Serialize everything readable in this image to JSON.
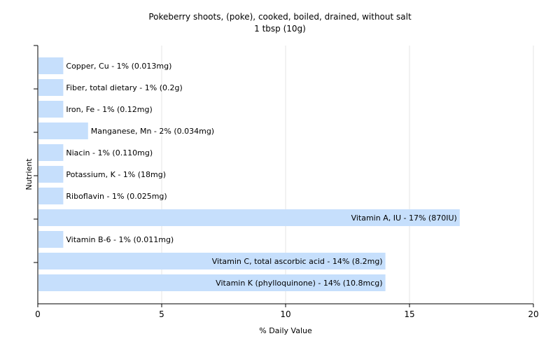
{
  "chart_data": {
    "type": "bar",
    "orientation": "horizontal",
    "title": "Pokeberry shoots, (poke), cooked, boiled, drained, without salt",
    "subtitle": "1 tbsp (10g)",
    "xlabel": "% Daily Value",
    "ylabel": "Nutrient",
    "xlim": [
      0,
      20
    ],
    "xticks": [
      0,
      5,
      10,
      15,
      20
    ],
    "grid": true,
    "bar_color": "#c6dffc",
    "categories": [
      "Copper, Cu",
      "Fiber, total dietary",
      "Iron, Fe",
      "Manganese, Mn",
      "Niacin",
      "Potassium, K",
      "Riboflavin",
      "Vitamin A, IU",
      "Vitamin B-6",
      "Vitamin C, total ascorbic acid",
      "Vitamin K (phylloquinone)"
    ],
    "values": [
      1,
      1,
      1,
      2,
      1,
      1,
      1,
      17,
      1,
      14,
      14
    ],
    "labels": [
      "Copper, Cu - 1% (0.013mg)",
      "Fiber, total dietary - 1% (0.2g)",
      "Iron, Fe - 1% (0.12mg)",
      "Manganese, Mn - 2% (0.034mg)",
      "Niacin - 1% (0.110mg)",
      "Potassium, K - 1% (18mg)",
      "Riboflavin - 1% (0.025mg)",
      "Vitamin A, IU - 17% (870IU)",
      "Vitamin B-6 - 1% (0.011mg)",
      "Vitamin C, total ascorbic acid - 14% (8.2mg)",
      "Vitamin K (phylloquinone) - 14% (10.8mcg)"
    ]
  }
}
